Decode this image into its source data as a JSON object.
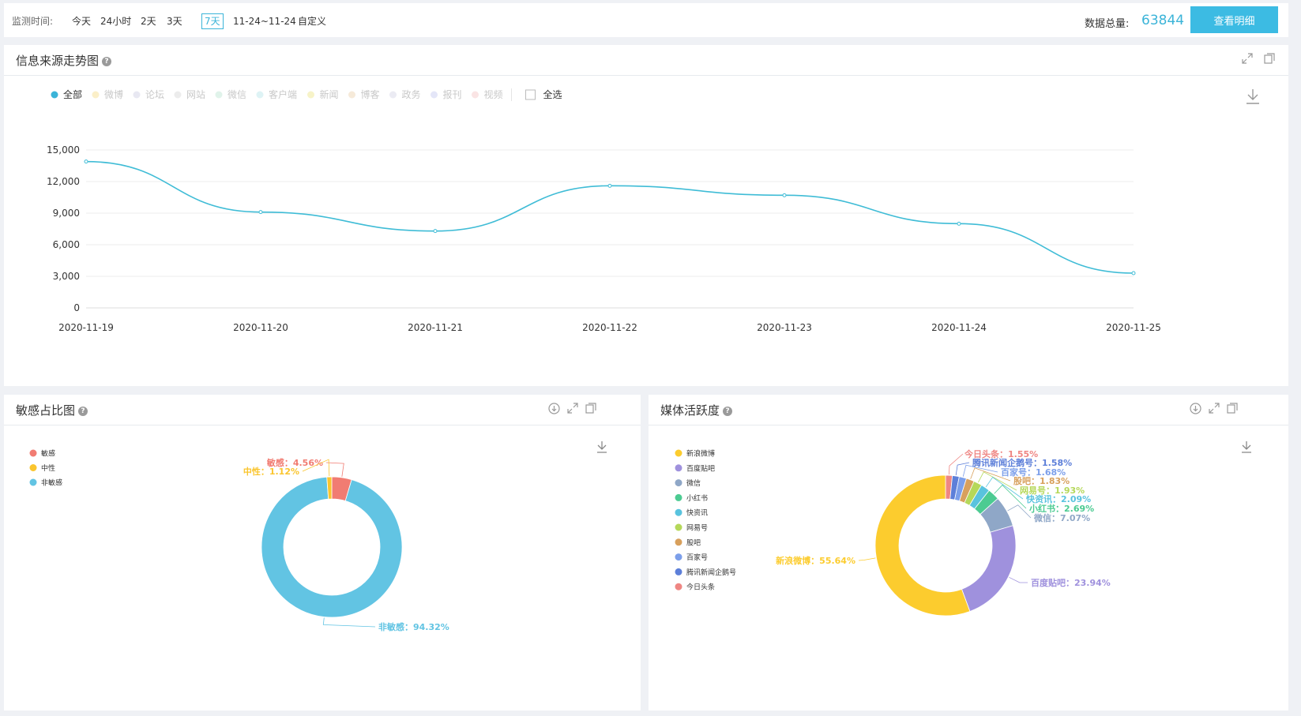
{
  "topbar": {
    "label": "监测时间:",
    "options": [
      "今天",
      "24小时",
      "2天",
      "3天",
      "7天",
      "11-24~11-24",
      "自定义"
    ],
    "active_index": 4,
    "total_label": "数据总量:",
    "total_value": "63844",
    "detail_button": "查看明细"
  },
  "colors": {
    "accent": "#3cbbe3",
    "line": "#3fbcd6"
  },
  "trend": {
    "title": "信息来源走势图",
    "legend": [
      {
        "label": "全部",
        "color": "#3bb4d8",
        "active": true
      },
      {
        "label": "微博",
        "color": "#fbefc8",
        "active": false
      },
      {
        "label": "论坛",
        "color": "#e8e8f2",
        "active": false
      },
      {
        "label": "网站",
        "color": "#ececec",
        "active": false
      },
      {
        "label": "微信",
        "color": "#e0f3ea",
        "active": false
      },
      {
        "label": "客户端",
        "color": "#def3f5",
        "active": false
      },
      {
        "label": "新闻",
        "color": "#f7f3c8",
        "active": false
      },
      {
        "label": "博客",
        "color": "#f6ead9",
        "active": false
      },
      {
        "label": "政务",
        "color": "#ebebf3",
        "active": false
      },
      {
        "label": "报刊",
        "color": "#e4e6f8",
        "active": false
      },
      {
        "label": "视频",
        "color": "#fae4e4",
        "active": false
      }
    ],
    "select_all": "全选"
  },
  "chart_data": [
    {
      "type": "line",
      "title": "信息来源走势图",
      "x": [
        "2020-11-19",
        "2020-11-20",
        "2020-11-21",
        "2020-11-22",
        "2020-11-23",
        "2020-11-24",
        "2020-11-25"
      ],
      "series": [
        {
          "name": "全部",
          "values": [
            13900,
            9100,
            7300,
            11600,
            10700,
            8000,
            3300
          ]
        }
      ],
      "yticks": [
        "15,000",
        "12,000",
        "9,000",
        "6,000",
        "3,000",
        "0"
      ],
      "ylim": [
        0,
        15000
      ],
      "grid": true,
      "legend_position": "top-left"
    },
    {
      "type": "pie",
      "title": "敏感占比图",
      "labels": [
        "敏感",
        "中性",
        "非敏感"
      ],
      "values": [
        4.56,
        1.12,
        94.32
      ],
      "slice_labels": [
        "敏感：4.56%",
        "中性：1.12%",
        "非敏感：94.32%"
      ],
      "colors": [
        "#f17c72",
        "#fac52e",
        "#62c4e3"
      ],
      "legend_position": "top-left"
    },
    {
      "type": "pie",
      "title": "媒体活跃度",
      "labels": [
        "新浪微博",
        "百度贴吧",
        "微信",
        "小红书",
        "快资讯",
        "网易号",
        "股吧",
        "百家号",
        "腾讯新闻企鹅号",
        "今日头条"
      ],
      "values": [
        55.64,
        23.94,
        7.07,
        2.69,
        2.09,
        1.93,
        1.83,
        1.68,
        1.58,
        1.55
      ],
      "slice_labels": [
        "新浪微博：55.64%",
        "百度贴吧：23.94%",
        "微信：7.07%",
        "小红书：2.69%",
        "快资讯：2.09%",
        "网易号：1.93%",
        "股吧：1.83%",
        "百家号：1.68%",
        "腾讯新闻企鹅号：1.58%",
        "今日头条：1.55%"
      ],
      "colors": [
        "#fccc2e",
        "#9f91dd",
        "#8fa7c7",
        "#4ccb92",
        "#59c3de",
        "#b5d85a",
        "#d8a05c",
        "#7c9fea",
        "#5d7fd9",
        "#ef8683"
      ],
      "legend_position": "top-left"
    }
  ]
}
